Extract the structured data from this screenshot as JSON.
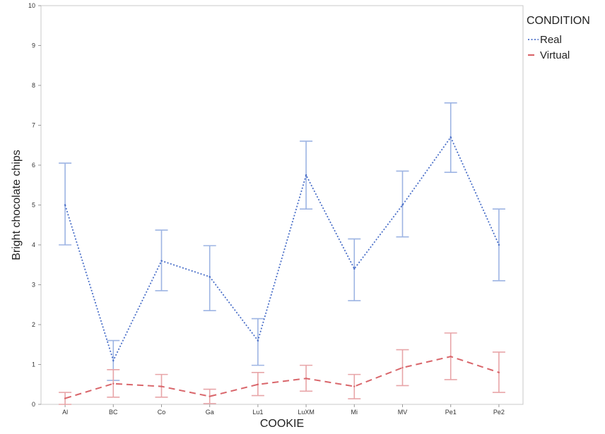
{
  "chart_data": {
    "type": "line",
    "xlabel": "COOKIE",
    "ylabel": "Bright chocolate chips",
    "ylim": [
      0,
      10
    ],
    "yticks": [
      "0",
      "1",
      "2",
      "3",
      "4",
      "5",
      "6",
      "7",
      "8",
      "9",
      "10"
    ],
    "categories": [
      "Al",
      "BC",
      "Co",
      "Ga",
      "Lu1",
      "LuXM",
      "Mi",
      "MV",
      "Pe1",
      "Pe2"
    ],
    "grid": false,
    "legend": {
      "title": "CONDITION",
      "placement": "top-right"
    },
    "series": [
      {
        "name": "Real",
        "color": "#4a6fc8",
        "error_color": "#9db4e3",
        "line_style": "dotted",
        "values": [
          5.0,
          1.1,
          3.6,
          3.2,
          1.6,
          5.75,
          3.4,
          5.0,
          6.7,
          4.0
        ],
        "error_low": [
          4.0,
          0.6,
          2.85,
          2.35,
          0.98,
          4.9,
          2.6,
          4.2,
          5.82,
          3.1
        ],
        "error_high": [
          6.05,
          1.6,
          4.37,
          3.98,
          2.15,
          6.6,
          4.15,
          5.85,
          7.56,
          4.9
        ]
      },
      {
        "name": "Virtual",
        "color": "#d9666b",
        "error_color": "#e8a5a8",
        "line_style": "dashed",
        "values": [
          0.15,
          0.52,
          0.45,
          0.2,
          0.5,
          0.65,
          0.45,
          0.92,
          1.2,
          0.8
        ],
        "error_low": [
          0.0,
          0.18,
          0.18,
          0.02,
          0.22,
          0.33,
          0.14,
          0.47,
          0.62,
          0.3
        ],
        "error_high": [
          0.3,
          0.87,
          0.75,
          0.38,
          0.8,
          0.98,
          0.75,
          1.37,
          1.79,
          1.31
        ]
      }
    ]
  }
}
